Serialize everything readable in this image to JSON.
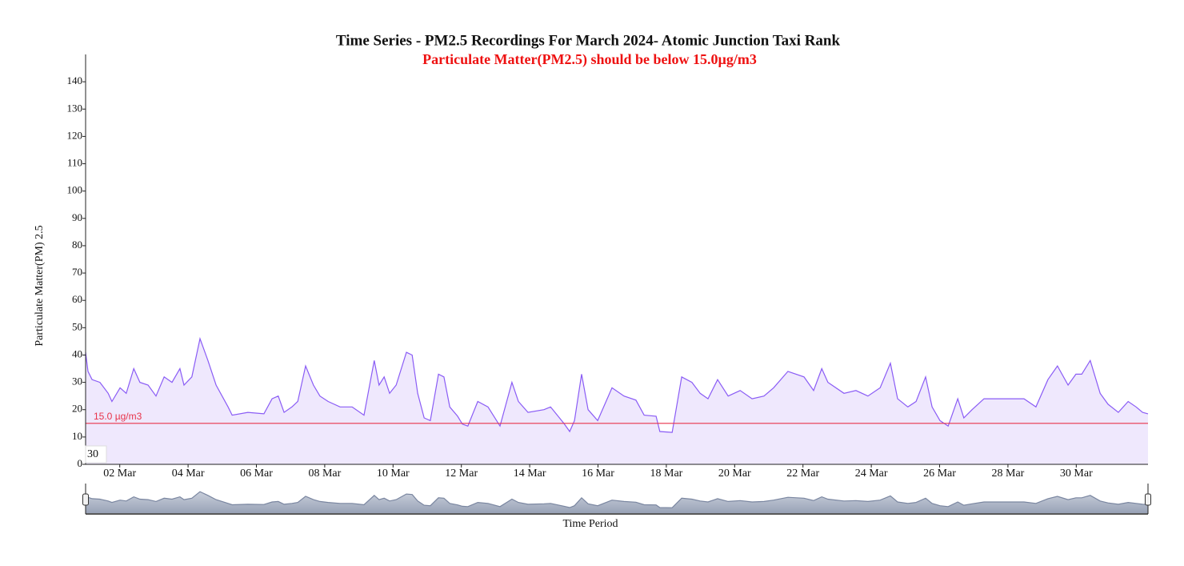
{
  "chart_data": {
    "type": "area",
    "title": "Time Series - PM2.5 Recordings For March 2024- Atomic Junction Taxi Rank",
    "subtitle": "Particulate Matter(PM2.5) should be below 15.0µg/m3",
    "y_label": "Particulate Matter(PM) 2.5",
    "x_label": "Time Period",
    "range_label": "30",
    "color": "#8a5cf5",
    "fill": "#efe8fd",
    "threshold": {
      "value": 15,
      "label": "15.0 µg/m3",
      "color": "#e8334a"
    },
    "ylim": [
      0,
      150
    ],
    "yticks": [
      0,
      10,
      20,
      30,
      40,
      50,
      60,
      70,
      80,
      90,
      100,
      110,
      120,
      130,
      140
    ],
    "xlim": [
      1,
      32.1
    ],
    "xticks": [
      {
        "value": 2,
        "label": "02 Mar"
      },
      {
        "value": 4,
        "label": "04 Mar"
      },
      {
        "value": 6,
        "label": "06 Mar"
      },
      {
        "value": 8,
        "label": "08 Mar"
      },
      {
        "value": 10,
        "label": "10 Mar"
      },
      {
        "value": 12,
        "label": "12 Mar"
      },
      {
        "value": 14,
        "label": "14 Mar"
      },
      {
        "value": 16,
        "label": "16 Mar"
      },
      {
        "value": 18,
        "label": "18 Mar"
      },
      {
        "value": 20,
        "label": "20 Mar"
      },
      {
        "value": 22,
        "label": "22 Mar"
      },
      {
        "value": 24,
        "label": "24 Mar"
      },
      {
        "value": 26,
        "label": "26 Mar"
      },
      {
        "value": 28,
        "label": "28 Mar"
      },
      {
        "value": 30,
        "label": "30 Mar"
      }
    ],
    "x": [
      1.0,
      1.07,
      1.19,
      1.42,
      1.66,
      1.77,
      2.01,
      2.19,
      2.41,
      2.59,
      2.83,
      3.06,
      3.3,
      3.53,
      3.76,
      3.88,
      4.11,
      4.35,
      4.58,
      4.82,
      5.17,
      5.29,
      5.75,
      6.22,
      6.46,
      6.64,
      6.81,
      7.04,
      7.21,
      7.44,
      7.67,
      7.86,
      8.1,
      8.45,
      8.8,
      9.15,
      9.45,
      9.59,
      9.74,
      9.9,
      10.09,
      10.39,
      10.56,
      10.72,
      10.91,
      11.09,
      11.33,
      11.49,
      11.66,
      11.89,
      12.03,
      12.19,
      12.48,
      12.78,
      13.13,
      13.48,
      13.67,
      13.95,
      14.42,
      14.61,
      15.0,
      15.17,
      15.31,
      15.52,
      15.71,
      15.99,
      16.41,
      16.76,
      17.11,
      17.35,
      17.7,
      17.81,
      18.17,
      18.45,
      18.75,
      18.99,
      19.22,
      19.5,
      19.81,
      20.16,
      20.51,
      20.86,
      21.14,
      21.56,
      22.03,
      22.31,
      22.55,
      22.73,
      23.2,
      23.55,
      23.9,
      24.26,
      24.56,
      24.77,
      25.07,
      25.31,
      25.59,
      25.78,
      26.01,
      26.25,
      26.53,
      26.71,
      26.95,
      27.3,
      28.47,
      28.82,
      29.17,
      29.45,
      29.76,
      29.99,
      30.16,
      30.41,
      30.7,
      30.93,
      31.23,
      31.52,
      31.75,
      31.94,
      32.1
    ],
    "values": [
      41,
      34,
      31,
      30,
      26,
      23,
      28,
      26,
      35,
      30,
      29,
      25,
      32,
      30,
      35,
      29,
      32,
      46,
      38,
      29,
      21,
      18,
      19,
      18.5,
      24,
      25,
      19,
      21,
      23,
      36,
      29,
      25,
      23,
      21,
      21,
      18,
      38,
      29,
      32,
      26,
      29,
      41,
      40,
      26,
      17,
      16,
      33,
      32,
      21,
      17.6,
      14.7,
      14,
      23,
      21,
      14,
      30,
      23,
      19,
      20,
      21,
      15,
      12,
      16,
      33,
      20,
      16,
      28,
      25,
      23.5,
      18,
      17.6,
      12,
      11.7,
      32,
      30,
      26,
      24,
      31,
      25,
      27,
      24,
      25,
      28,
      34,
      32,
      27,
      35,
      30,
      26,
      27,
      25,
      28,
      37,
      24,
      21,
      23,
      32,
      21,
      16,
      14,
      24,
      17,
      20,
      24,
      24,
      21,
      31,
      36,
      29,
      33,
      33,
      38,
      26,
      22,
      19,
      23,
      21,
      19,
      18.5
    ]
  }
}
